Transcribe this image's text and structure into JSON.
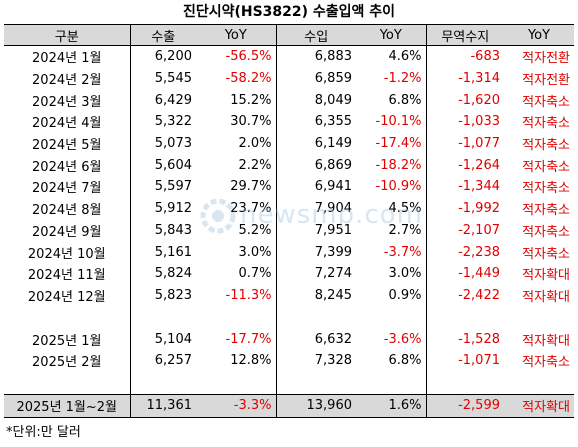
{
  "title": "진단시약(HS3822) 수출입액 추이",
  "headers": [
    "구분",
    "수출",
    "YoY",
    "수입",
    "YoY",
    "무역수지",
    "YoY"
  ],
  "rows": [
    {
      "label": "2024년 1월",
      "export": "6,200",
      "export_yoy": "-56.5%",
      "import": "6,883",
      "import_yoy": "4.6%",
      "balance": "-683",
      "status": "적자전환"
    },
    {
      "label": "2024년 2월",
      "export": "5,545",
      "export_yoy": "-58.2%",
      "import": "6,859",
      "import_yoy": "-1.2%",
      "balance": "-1,314",
      "status": "적자전환"
    },
    {
      "label": "2024년 3월",
      "export": "6,429",
      "export_yoy": "15.2%",
      "import": "8,049",
      "import_yoy": "6.8%",
      "balance": "-1,620",
      "status": "적자축소"
    },
    {
      "label": "2024년 4월",
      "export": "5,322",
      "export_yoy": "30.7%",
      "import": "6,355",
      "import_yoy": "-10.1%",
      "balance": "-1,033",
      "status": "적자축소"
    },
    {
      "label": "2024년 5월",
      "export": "5,073",
      "export_yoy": "2.0%",
      "import": "6,149",
      "import_yoy": "-17.4%",
      "balance": "-1,077",
      "status": "적자축소"
    },
    {
      "label": "2024년 6월",
      "export": "5,604",
      "export_yoy": "2.2%",
      "import": "6,869",
      "import_yoy": "-18.2%",
      "balance": "-1,264",
      "status": "적자축소"
    },
    {
      "label": "2024년 7월",
      "export": "5,597",
      "export_yoy": "29.7%",
      "import": "6,941",
      "import_yoy": "-10.9%",
      "balance": "-1,344",
      "status": "적자축소"
    },
    {
      "label": "2024년 8월",
      "export": "5,912",
      "export_yoy": "23.7%",
      "import": "7,904",
      "import_yoy": "4.5%",
      "balance": "-1,992",
      "status": "적자축소"
    },
    {
      "label": "2024년 9월",
      "export": "5,843",
      "export_yoy": "5.2%",
      "import": "7,951",
      "import_yoy": "2.7%",
      "balance": "-2,107",
      "status": "적자축소"
    },
    {
      "label": "2024년 10월",
      "export": "5,161",
      "export_yoy": "3.0%",
      "import": "7,399",
      "import_yoy": "-3.7%",
      "balance": "-2,238",
      "status": "적자축소"
    },
    {
      "label": "2024년 11월",
      "export": "5,824",
      "export_yoy": "0.7%",
      "import": "7,274",
      "import_yoy": "3.0%",
      "balance": "-1,449",
      "status": "적자확대"
    },
    {
      "label": "2024년 12월",
      "export": "5,823",
      "export_yoy": "-11.3%",
      "import": "8,245",
      "import_yoy": "0.9%",
      "balance": "-2,422",
      "status": "적자확대"
    },
    {
      "label": "2025년 1월",
      "export": "5,104",
      "export_yoy": "-17.7%",
      "import": "6,632",
      "import_yoy": "-3.6%",
      "balance": "-1,528",
      "status": "적자확대"
    },
    {
      "label": "2025년 2월",
      "export": "6,257",
      "export_yoy": "12.8%",
      "import": "7,328",
      "import_yoy": "6.8%",
      "balance": "-1,071",
      "status": "적자축소"
    }
  ],
  "total": {
    "label": "2025년 1월~2월",
    "export": "11,361",
    "export_yoy": "-3.3%",
    "import": "13,960",
    "import_yoy": "1.6%",
    "balance": "-2,599",
    "status": "적자확대"
  },
  "footnote": "*단위:만 달러",
  "watermark": {
    "text": "newsmp.com",
    "icon": "newsmp-logo-icon",
    "color": "#8fb8d8"
  },
  "colors": {
    "negative": "#e00000",
    "header_bg": "#d9d9d9"
  }
}
